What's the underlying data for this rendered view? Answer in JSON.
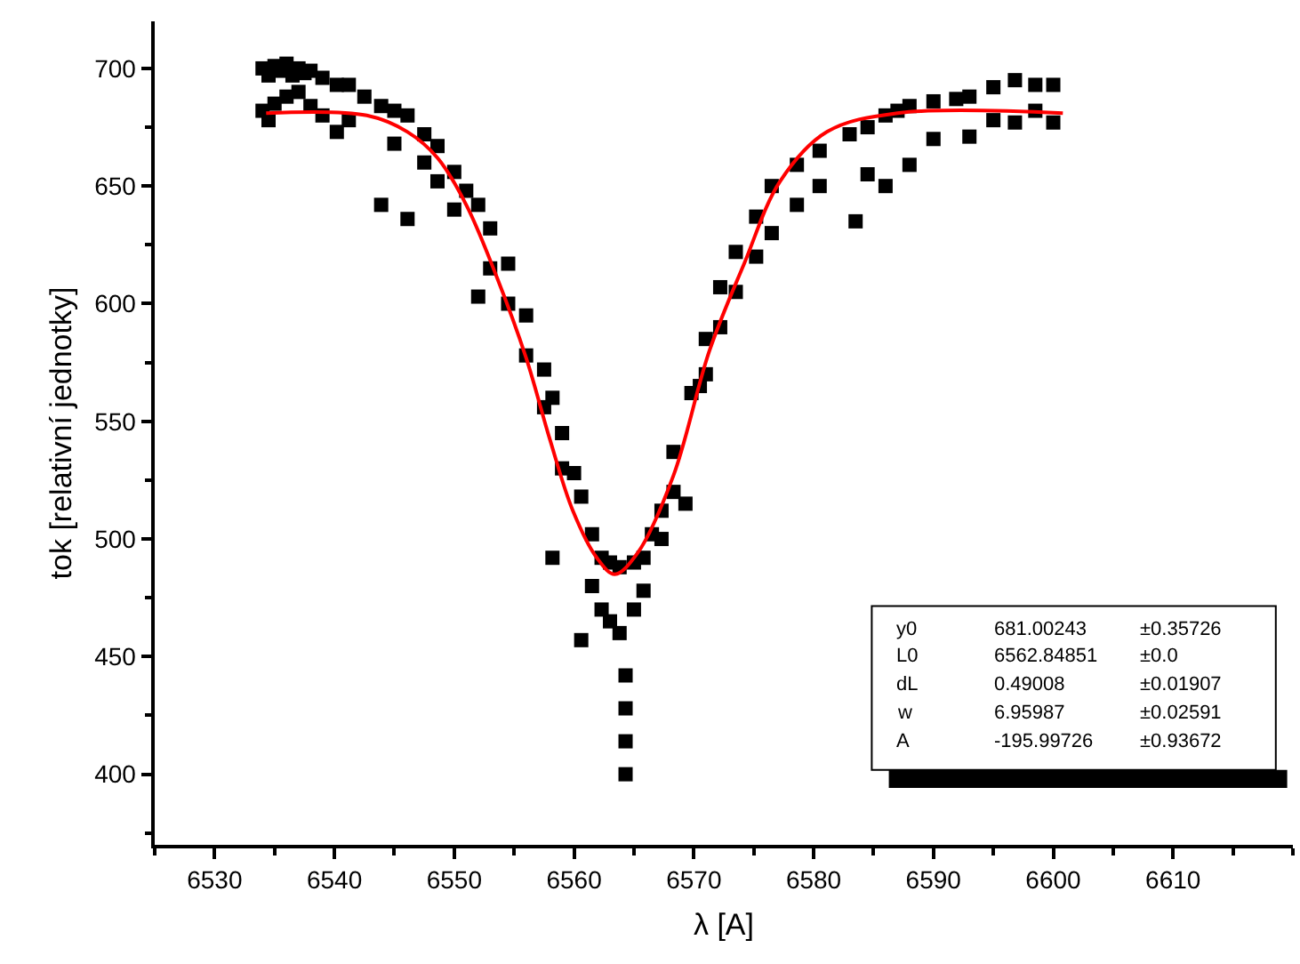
{
  "chart_data": {
    "type": "scatter",
    "xlabel": "λ [A]",
    "ylabel": "tok [relativní jednotky]",
    "xlim": [
      6525,
      6620
    ],
    "xticks": [
      6530,
      6540,
      6550,
      6560,
      6570,
      6580,
      6590,
      6600,
      6610
    ],
    "ylim": [
      370,
      720
    ],
    "yticks": [
      400,
      450,
      500,
      550,
      600,
      650,
      700
    ],
    "series": [
      {
        "marker": "square",
        "color": "#000000",
        "x": [
          6534.0,
          6534.0,
          6534.5,
          6534.5,
          6535.0,
          6535.0,
          6535.5,
          6536.0,
          6536.0,
          6536.5,
          6537.0,
          6537.0,
          6537.5,
          6538.0,
          6538.0,
          6539.0,
          6539.0,
          6540.2,
          6540.2,
          6541.2,
          6541.2,
          6542.5,
          6543.9,
          6543.9,
          6545.0,
          6545.0,
          6546.1,
          6546.1,
          6547.5,
          6547.5,
          6548.6,
          6548.6,
          6550.0,
          6550.0,
          6551.0,
          6552.0,
          6552.0,
          6553.0,
          6553.0,
          6554.5,
          6554.5,
          6556.0,
          6556.0,
          6557.5,
          6557.5,
          6558.2,
          6558.2,
          6559.0,
          6559.0,
          6560.0,
          6560.6,
          6560.6,
          6561.5,
          6561.5,
          6562.3,
          6562.3,
          6563.0,
          6563.0,
          6563.8,
          6563.8,
          6564.3,
          6564.3,
          6564.3,
          6564.3,
          6565.0,
          6565.0,
          6565.8,
          6565.8,
          6566.5,
          6567.3,
          6567.3,
          6568.3,
          6568.3,
          6569.3,
          6569.8,
          6570.5,
          6571.0,
          6571.0,
          6572.2,
          6572.2,
          6573.5,
          6573.5,
          6575.2,
          6575.2,
          6576.5,
          6576.5,
          6578.6,
          6578.6,
          6580.5,
          6580.5,
          6583.0,
          6583.5,
          6584.5,
          6584.5,
          6586.0,
          6586.0,
          6587.0,
          6588.0,
          6588.0,
          6590.0,
          6590.0,
          6591.9,
          6593.0,
          6593.0,
          6595.0,
          6595.0,
          6596.8,
          6596.8,
          6598.5,
          6598.5,
          6600.0,
          6600.0
        ],
        "values": [
          700,
          682,
          697,
          678,
          701,
          685,
          699,
          702,
          688,
          697,
          700,
          690,
          698,
          699,
          684,
          696,
          680,
          693,
          673,
          693,
          678,
          688,
          684,
          642,
          682,
          668,
          680,
          636,
          672,
          660,
          667,
          652,
          656,
          640,
          648,
          642,
          603,
          632,
          615,
          617,
          600,
          595,
          578,
          572,
          556,
          560,
          492,
          545,
          530,
          528,
          518,
          457,
          502,
          480,
          492,
          470,
          490,
          465,
          488,
          460,
          442,
          428,
          414,
          400,
          490,
          470,
          492,
          478,
          502,
          512,
          500,
          537,
          520,
          515,
          562,
          565,
          585,
          570,
          607,
          590,
          622,
          605,
          637,
          620,
          650,
          630,
          659,
          642,
          665,
          650,
          672,
          635,
          675,
          655,
          680,
          650,
          682,
          684,
          659,
          686,
          670,
          687,
          688,
          671,
          692,
          678,
          695,
          677,
          693,
          682,
          693,
          677
        ]
      },
      {
        "type": "line",
        "line_style": "solid",
        "marker": "none",
        "color": "#ff0000",
        "x": [
          6534.3,
          6542.7,
          6546.1,
          6548.6,
          6551.0,
          6553.5,
          6556.0,
          6558.0,
          6559.9,
          6561.9,
          6563.4,
          6565.3,
          6568.3,
          6571.3,
          6574.2,
          6577.2,
          6581.1,
          6587.0,
          6600.8
        ],
        "values": [
          681,
          680,
          673,
          662,
          642,
          612,
          577,
          542,
          512,
          492,
          485,
          494,
          527,
          580,
          617,
          652,
          673,
          681,
          681
        ]
      }
    ],
    "annotations": [
      "y0",
      "681.00243",
      "±0.35726",
      "L0",
      "6562.84851",
      "±0.0",
      "dL",
      "0.49008",
      "±0.01907",
      "w",
      "6.95987",
      "±0.02591",
      "A",
      "-195.99726",
      "±0.93672"
    ]
  }
}
